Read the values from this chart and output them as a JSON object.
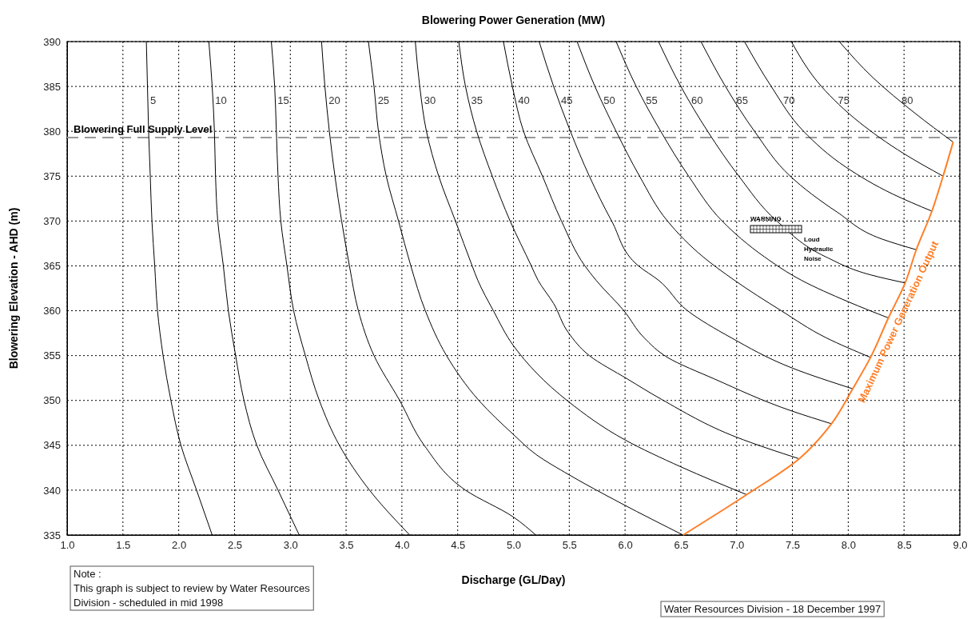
{
  "chart_data": {
    "type": "line",
    "title": "Blowering Power Generation (MW)",
    "xlabel": "Discharge (GL/Day)",
    "ylabel": "Blowering Elevation - AHD (m)",
    "xlim": [
      1,
      9
    ],
    "ylim": [
      335,
      390
    ],
    "xticks": [
      {
        "value": 1,
        "label": "1.0"
      },
      {
        "value": 1.5,
        "label": "1.5"
      },
      {
        "value": 2,
        "label": "2.0"
      },
      {
        "value": 2.5,
        "label": "2.5"
      },
      {
        "value": 3,
        "label": "3.0"
      },
      {
        "value": 3.5,
        "label": "3.5"
      },
      {
        "value": 4,
        "label": "4.0"
      },
      {
        "value": 4.5,
        "label": "4.5"
      },
      {
        "value": 5,
        "label": "5.0"
      },
      {
        "value": 5.5,
        "label": "5.5"
      },
      {
        "value": 6,
        "label": "6.0"
      },
      {
        "value": 6.5,
        "label": "6.5"
      },
      {
        "value": 7,
        "label": "7.0"
      },
      {
        "value": 7.5,
        "label": "7.5"
      },
      {
        "value": 8,
        "label": "8.0"
      },
      {
        "value": 8.5,
        "label": "8.5"
      },
      {
        "value": 9,
        "label": "9.0"
      }
    ],
    "yticks": [
      335,
      340,
      345,
      350,
      355,
      360,
      365,
      370,
      375,
      380,
      385,
      390
    ],
    "grid": true,
    "legend": false,
    "marker": "none",
    "line_style": "solid",
    "series": [
      {
        "name": "5",
        "color": "#000000",
        "x": [
          1.71,
          1.72,
          1.73,
          1.745,
          1.76,
          1.785,
          1.81,
          1.86,
          1.93,
          2.02,
          2.16,
          2.3
        ],
        "values": [
          390,
          385,
          380,
          375,
          370,
          365,
          360,
          355,
          350,
          345,
          340,
          335
        ]
      },
      {
        "name": "10",
        "color": "#000000",
        "x": [
          2.27,
          2.3,
          2.32,
          2.33,
          2.35,
          2.4,
          2.445,
          2.51,
          2.585,
          2.7,
          2.89,
          3.08
        ],
        "values": [
          390,
          385,
          380,
          375,
          370,
          365,
          360,
          355,
          350,
          345,
          340,
          335
        ]
      },
      {
        "name": "15",
        "color": "#000000",
        "x": [
          2.83,
          2.86,
          2.875,
          2.89,
          2.915,
          2.97,
          3.03,
          3.135,
          3.26,
          3.44,
          3.71,
          4.07
        ],
        "values": [
          390,
          385,
          380,
          375,
          370,
          365,
          360,
          355,
          350,
          345,
          340,
          335
        ]
      },
      {
        "name": "20",
        "color": "#000000",
        "x": [
          3.28,
          3.31,
          3.35,
          3.4,
          3.46,
          3.53,
          3.61,
          3.75,
          3.98,
          4.2,
          4.57,
          5.0,
          5.2
        ],
        "values": [
          390,
          385,
          380,
          375,
          370,
          365,
          360,
          355,
          350,
          345,
          340,
          337,
          335
        ]
      },
      {
        "name": "25",
        "color": "#000000",
        "x": [
          3.7,
          3.75,
          3.79,
          3.86,
          3.97,
          4.08,
          4.21,
          4.4,
          4.69,
          5.0,
          5.2,
          5.5,
          5.97,
          6.52
        ],
        "values": [
          390,
          385,
          380,
          375,
          370,
          365,
          360,
          355,
          350,
          346.2,
          344,
          341.7,
          338.5,
          335
        ]
      },
      {
        "name": "30",
        "color": "#000000",
        "x": [
          4.12,
          4.16,
          4.22,
          4.33,
          4.48,
          4.63,
          4.68,
          4.82,
          5.0,
          5.49,
          6.0,
          6.5,
          7.09
        ],
        "values": [
          390,
          385,
          380,
          375,
          370,
          365,
          363.4,
          360,
          356.1,
          349.9,
          345.6,
          342.6,
          339.5
        ]
      },
      {
        "name": "35",
        "color": "#000000",
        "x": [
          4.51,
          4.57,
          4.67,
          4.81,
          4.97,
          5.16,
          5.22,
          5.36,
          5.49,
          5.68,
          6.02,
          6.33,
          7.0,
          7.56
        ],
        "values": [
          390,
          385,
          380,
          375,
          370,
          365,
          363.4,
          360.8,
          357.6,
          355,
          352.4,
          350.1,
          345.9,
          343.5
        ]
      },
      {
        "name": "40",
        "color": "#000000",
        "x": [
          4.91,
          4.99,
          5.09,
          5.26,
          5.43,
          5.64,
          5.74,
          5.99,
          6.17,
          6.38,
          6.8,
          7.5,
          7.85
        ],
        "values": [
          390,
          385,
          380,
          375,
          370,
          365,
          363.4,
          360,
          357,
          354.8,
          352.4,
          348.8,
          347.4
        ]
      },
      {
        "name": "45",
        "color": "#000000",
        "x": [
          5.23,
          5.36,
          5.51,
          5.68,
          5.88,
          6.12,
          6.3,
          6.56,
          6.95,
          7.5,
          8.04
        ],
        "values": [
          390,
          385,
          380,
          375,
          370,
          365,
          363.4,
          360,
          357,
          353.6,
          351.3
        ]
      },
      {
        "name": "50",
        "color": "#000000",
        "x": [
          5.57,
          5.73,
          5.92,
          6.13,
          6.38,
          6.7,
          6.98,
          7.4,
          7.8,
          8.2
        ],
        "values": [
          390,
          385,
          380,
          375,
          370,
          366,
          363.4,
          360,
          357,
          354.8
        ]
      },
      {
        "name": "55",
        "color": "#000000",
        "x": [
          5.92,
          6.1,
          6.32,
          6.57,
          6.87,
          7.25,
          7.58,
          8.0,
          8.36
        ],
        "values": [
          390,
          385,
          380,
          375,
          370,
          366,
          363.4,
          361,
          359.2
        ]
      },
      {
        "name": "60",
        "color": "#000000",
        "x": [
          6.3,
          6.5,
          6.74,
          7.02,
          7.36,
          7.8,
          8.2,
          8.51
        ],
        "values": [
          390,
          385,
          380,
          375,
          370,
          366,
          364,
          363.1
        ]
      },
      {
        "name": "65",
        "color": "#000000",
        "x": [
          6.68,
          6.9,
          7.16,
          7.48,
          7.9,
          8.3,
          8.61
        ],
        "values": [
          390,
          385,
          380,
          375,
          371,
          368,
          366.8
        ]
      },
      {
        "name": "70",
        "color": "#000000",
        "x": [
          7.07,
          7.31,
          7.6,
          7.98,
          8.4,
          8.75
        ],
        "values": [
          390,
          385,
          380,
          376,
          373,
          371.1
        ]
      },
      {
        "name": "75",
        "color": "#000000",
        "x": [
          7.49,
          7.76,
          8.1,
          8.5,
          8.85
        ],
        "values": [
          390,
          385,
          381,
          377.5,
          375
        ]
      },
      {
        "name": "80",
        "color": "#000000",
        "x": [
          7.92,
          8.22,
          8.6,
          8.94
        ],
        "values": [
          390,
          386,
          382,
          378.8
        ]
      },
      {
        "name": "Maximum Power Generation Output",
        "color": "#ff7f27",
        "x": [
          6.52,
          7.09,
          7.56,
          7.85,
          8.04,
          8.2,
          8.36,
          8.51,
          8.61,
          8.75,
          8.85,
          8.94
        ],
        "values": [
          335,
          339.5,
          343.5,
          347.4,
          351.3,
          354.8,
          359.2,
          363.1,
          366.8,
          371.1,
          375,
          378.8
        ]
      }
    ],
    "ref_lines": [
      {
        "axis": "y",
        "value": 379.3,
        "label": "Blowering Full Supply Level",
        "color": "#999999",
        "line_style": "dashed"
      }
    ],
    "annotations": [
      "WARNING",
      "Loud",
      "Hydraulic",
      "Noise",
      "Note :\nThis graph is subject to review by Water Resources\nDivision  - scheduled in mid 1998",
      "Water Resources Division - 18 December 1997"
    ]
  }
}
